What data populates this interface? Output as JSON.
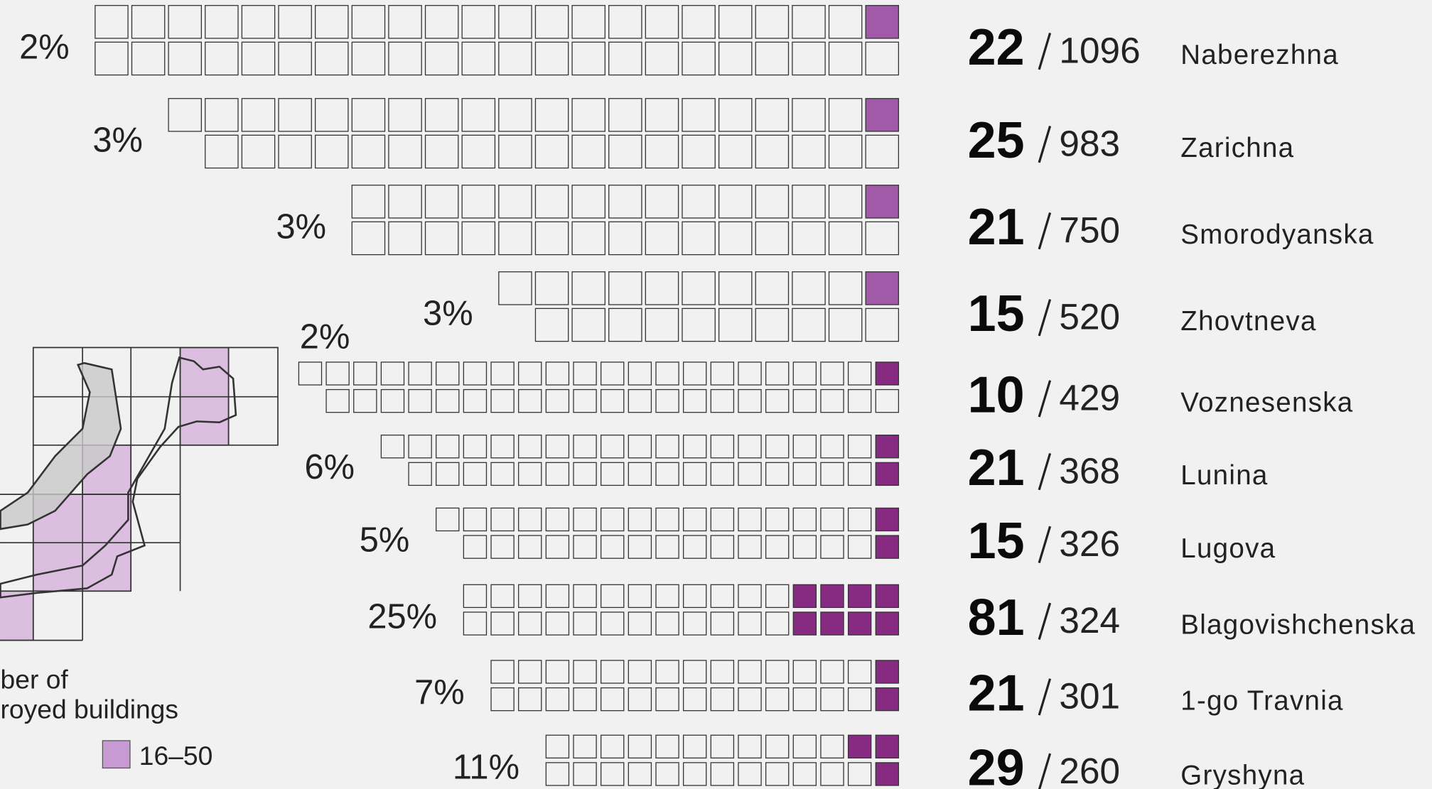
{
  "legend": {
    "title_lines": [
      "ber of",
      "royed buildings"
    ],
    "items": [
      "16–50"
    ]
  },
  "rows": [
    {
      "percent": "2%",
      "destroyed": 22,
      "total": 1096,
      "street": "Naberezhna"
    },
    {
      "percent": "3%",
      "destroyed": 25,
      "total": 983,
      "street": "Zarichna"
    },
    {
      "percent": "3%",
      "destroyed": 21,
      "total": 750,
      "street": "Smorodyanska"
    },
    {
      "percent": "3%",
      "destroyed": 15,
      "total": 520,
      "street": "Zhovtneva"
    },
    {
      "percent": "2%",
      "destroyed": 10,
      "total": 429,
      "street": "Voznesenska"
    },
    {
      "percent": "6%",
      "destroyed": 21,
      "total": 368,
      "street": "Lunina"
    },
    {
      "percent": "5%",
      "destroyed": 15,
      "total": 326,
      "street": "Lugova"
    },
    {
      "percent": "25%",
      "destroyed": 81,
      "total": 324,
      "street": "Blagovishchenska"
    },
    {
      "percent": "7%",
      "destroyed": 21,
      "total": 301,
      "street": "1-go Travnia"
    },
    {
      "percent": "11%",
      "destroyed": 29,
      "total": 260,
      "street": "Gryshyna"
    }
  ]
}
